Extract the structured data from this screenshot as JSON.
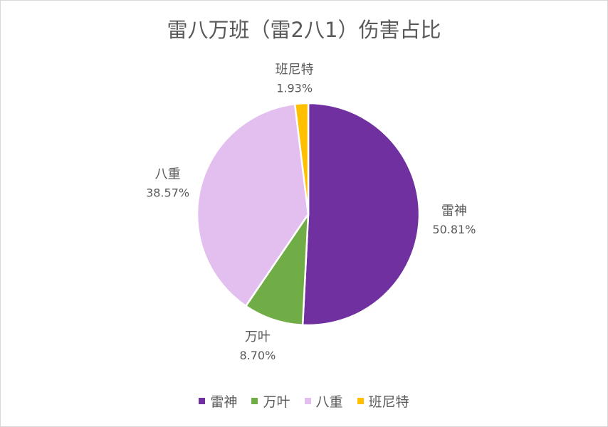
{
  "chart_data": {
    "type": "pie",
    "title": "雷八万班（雷2八1）伤害占比",
    "categories": [
      "雷神",
      "万叶",
      "八重",
      "班尼特"
    ],
    "values": [
      50.81,
      8.7,
      38.57,
      1.93
    ],
    "value_labels": [
      "50.81%",
      "8.70%",
      "38.57%",
      "1.93%"
    ],
    "colors": [
      "#7030a0",
      "#70ad47",
      "#e2bfee",
      "#ffc000"
    ],
    "legend_position": "bottom",
    "start_angle": "12 o'clock, clockwise"
  }
}
